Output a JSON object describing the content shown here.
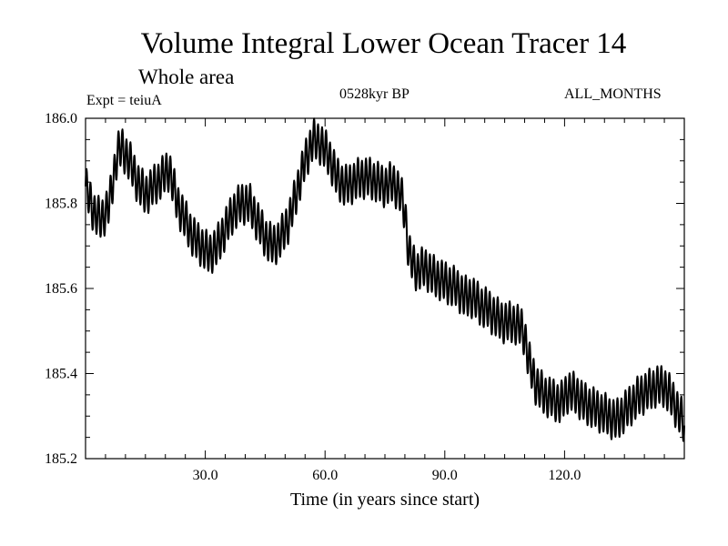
{
  "header": {
    "title": "Volume Integral Lower Ocean Tracer 14",
    "subtitle": "Whole area",
    "experiment": "Expt = teiuA",
    "period": "0528kyr BP",
    "months": "ALL_MONTHS"
  },
  "chart_data": {
    "type": "line",
    "title": "Volume Integral Lower Ocean Tracer 14",
    "subtitle": "Whole area",
    "xlabel": "Time (in years since start)",
    "ylabel": "",
    "xlim": [
      0,
      150
    ],
    "ylim": [
      185.2,
      186.0
    ],
    "xticks": [
      30,
      60,
      90,
      120
    ],
    "xtick_labels": [
      "30.0",
      "60.0",
      "90.0",
      "120.0"
    ],
    "yticks": [
      185.2,
      185.4,
      185.6,
      185.8,
      186.0
    ],
    "ytick_labels": [
      "185.2",
      "185.4",
      "185.6",
      "185.8",
      "186.0"
    ],
    "grid": false,
    "oscillation_amplitude": 0.045,
    "oscillation_period_years": 1,
    "series": [
      {
        "name": "Volume integral",
        "color": "#000000",
        "trend": {
          "x": [
            0,
            2,
            4,
            6,
            8,
            9,
            11,
            13,
            15,
            17,
            19,
            21,
            23,
            25,
            27,
            29,
            31,
            33,
            35,
            37,
            39,
            41,
            43,
            45,
            47,
            49,
            51,
            53,
            55,
            57,
            59,
            61,
            63,
            65,
            67,
            69,
            71,
            73,
            75,
            77,
            79,
            80,
            81,
            83,
            85,
            87,
            89,
            91,
            93,
            95,
            97,
            99,
            101,
            103,
            105,
            107,
            109,
            110,
            111,
            112,
            113,
            115,
            117,
            119,
            121,
            123,
            125,
            127,
            129,
            131,
            133,
            135,
            137,
            139,
            141,
            143,
            145,
            147,
            150
          ],
          "y": [
            185.84,
            185.78,
            185.76,
            185.8,
            185.92,
            185.93,
            185.9,
            185.85,
            185.82,
            185.84,
            185.86,
            185.88,
            185.8,
            185.76,
            185.72,
            185.7,
            185.68,
            185.7,
            185.74,
            185.78,
            185.8,
            185.8,
            185.76,
            185.72,
            185.7,
            185.72,
            185.76,
            185.83,
            185.9,
            185.95,
            185.94,
            185.91,
            185.86,
            185.84,
            185.85,
            185.86,
            185.86,
            185.85,
            185.84,
            185.85,
            185.82,
            185.78,
            185.68,
            185.64,
            185.65,
            185.63,
            185.62,
            185.61,
            185.6,
            185.58,
            185.58,
            185.56,
            185.55,
            185.53,
            185.52,
            185.52,
            185.51,
            185.49,
            185.43,
            185.4,
            185.37,
            185.35,
            185.34,
            185.33,
            185.36,
            185.35,
            185.33,
            185.32,
            185.31,
            185.3,
            185.29,
            185.31,
            185.33,
            185.35,
            185.36,
            185.37,
            185.37,
            185.34,
            185.28
          ]
        }
      }
    ]
  }
}
